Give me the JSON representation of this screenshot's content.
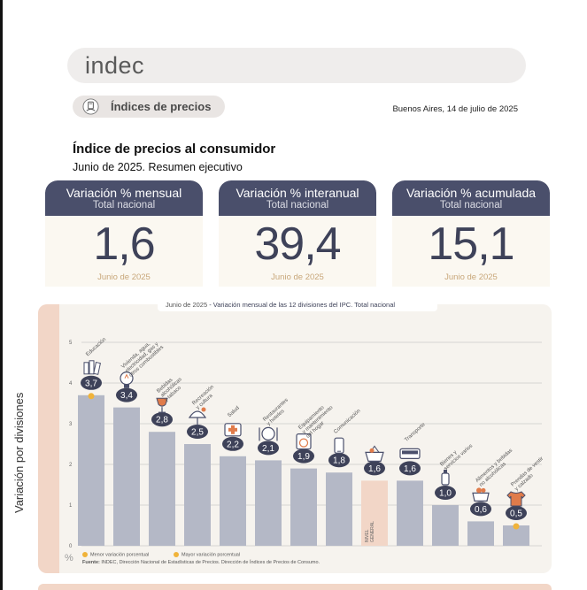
{
  "header": {
    "logo": "indec"
  },
  "badge": {
    "label": "Índices de precios",
    "icon": "calculator-hand-icon"
  },
  "place_date": "Buenos Aires, 14 de julio de 2025",
  "title": "Índice de precios al consumidor",
  "subtitle": "Junio de 2025. Resumen ejecutivo",
  "cards": [
    {
      "title": "Variación % mensual",
      "sub": "Total nacional",
      "value": "1,6",
      "period": "Junio de 2025"
    },
    {
      "title": "Variación % interanual",
      "sub": "Total nacional",
      "value": "39,4",
      "period": "Junio de 2025"
    },
    {
      "title": "Variación % acumulada",
      "sub": "Total nacional",
      "value": "15,1",
      "period": "Junio de 2025"
    }
  ],
  "chart": {
    "caption_period": "Junio de 2025",
    "caption_text": " - Variación mensual de las 12 divisiones del IPC. Total nacional",
    "side_label": "Variación por divisiones",
    "unit": "%",
    "legend_min": "Menor variación porcentual",
    "legend_max": "Mayor variación porcentual",
    "source_label": "Fuente:",
    "source_text": " INDEC, Dirección Nacional de Estadísticas de Precios. Dirección de Índices de Precios de Consumo.",
    "colors": {
      "bar": "#b4b8c6",
      "general": "#f2d6c7",
      "bubble": "#3e4259",
      "marker": "#f0b33a",
      "icon": "#4a4f6b",
      "accent": "#e07b4a"
    }
  },
  "chart_data": {
    "type": "bar",
    "title": "Variación mensual de las 12 divisiones del IPC. Total nacional",
    "ylabel": "%",
    "ylim": [
      0,
      5
    ],
    "yticks": [
      "0",
      "1",
      "2",
      "3",
      "4",
      "5"
    ],
    "grid": true,
    "categories": [
      "Educación",
      "Vivienda, agua, electricidad, gas y otros combustibles",
      "Bebidas alcohólicas y tabaco",
      "Recreación y cultura",
      "Salud",
      "Restaurantes y hoteles",
      "Equipamiento y mantenimiento del hogar",
      "Comunicación",
      "NIVEL GENERAL",
      "Transporte",
      "Bienes y servicios varios",
      "Alimentos y bebidas no alcohólicas",
      "Prendas de vestir y calzado"
    ],
    "labels": [
      "3,7",
      "3,4",
      "2,8",
      "2,5",
      "2,2",
      "2,1",
      "1,9",
      "1,8",
      "1,6",
      "1,6",
      "1,0",
      "0,6",
      "0,5"
    ],
    "values": [
      3.7,
      3.4,
      2.8,
      2.5,
      2.2,
      2.1,
      1.9,
      1.8,
      1.6,
      1.6,
      1.0,
      0.6,
      0.5
    ],
    "label_lines": [
      [
        "Educación"
      ],
      [
        "Vivienda, agua,",
        "electricidad, gas y",
        "otros combustibles"
      ],
      [
        "Bebidas",
        "alcohólicas",
        "y tabaco"
      ],
      [
        "Recreación",
        "y cultura"
      ],
      [
        "Salud"
      ],
      [
        "Restaurantes",
        "y hoteles"
      ],
      [
        "Equipamiento",
        "y mantenimiento",
        "del hogar"
      ],
      [
        "Comunicación"
      ],
      [],
      [
        "Transporte"
      ],
      [
        "Bienes y",
        "servicios varios"
      ],
      [
        "Alimentos y bebidas",
        "no alcohólicas"
      ],
      [
        "Prendas de vestir",
        "y calzado"
      ]
    ],
    "general_label": [
      "NIVEL",
      "GENERAL"
    ],
    "max_marker_index": 0,
    "min_marker_index": 12,
    "icons": [
      "books-icon",
      "lightbulb-icon",
      "wine-glass-icon",
      "beach-umbrella-icon",
      "first-aid-kit-icon",
      "dining-icon",
      "washing-machine-icon",
      "phone-icon",
      "shopping-basket-icon",
      "bus-icon",
      "hygiene-icon",
      "food-pot-icon",
      "shirt-icon"
    ]
  }
}
